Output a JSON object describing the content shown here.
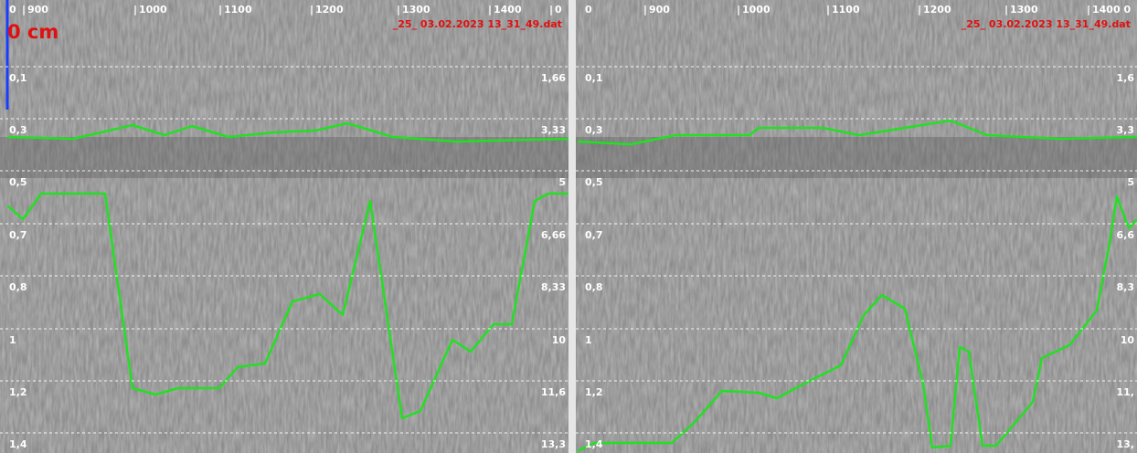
{
  "panels": [
    {
      "overlay": "0 cm",
      "filename": "_25_ 03.02.2023 13_31_49.dat",
      "top_labels": [
        "0",
        "900",
        "1000",
        "1100",
        "1200",
        "1300",
        "1400",
        "0"
      ],
      "left_labels": [
        "0,1",
        "0,3",
        "0,5",
        "0,7",
        "0,8",
        "1",
        "1,2",
        "1,4"
      ],
      "right_labels": [
        "1,66",
        "3,33",
        "5",
        "6,66",
        "8,33",
        "10",
        "11,6",
        "13,3"
      ]
    },
    {
      "filename": "_25_ 03.02.2023 13_31_49.dat",
      "top_labels": [
        "0",
        "900",
        "1000",
        "1100",
        "1200",
        "1300",
        "1400 0"
      ],
      "left_labels": [
        "0,1",
        "0,3",
        "0,5",
        "0,7",
        "0,8",
        "1",
        "1,2",
        "1,4"
      ],
      "right_labels": [
        "1,6",
        "3,3",
        "5",
        "6,6",
        "8,3",
        "10",
        "11,",
        "13,"
      ]
    }
  ]
}
